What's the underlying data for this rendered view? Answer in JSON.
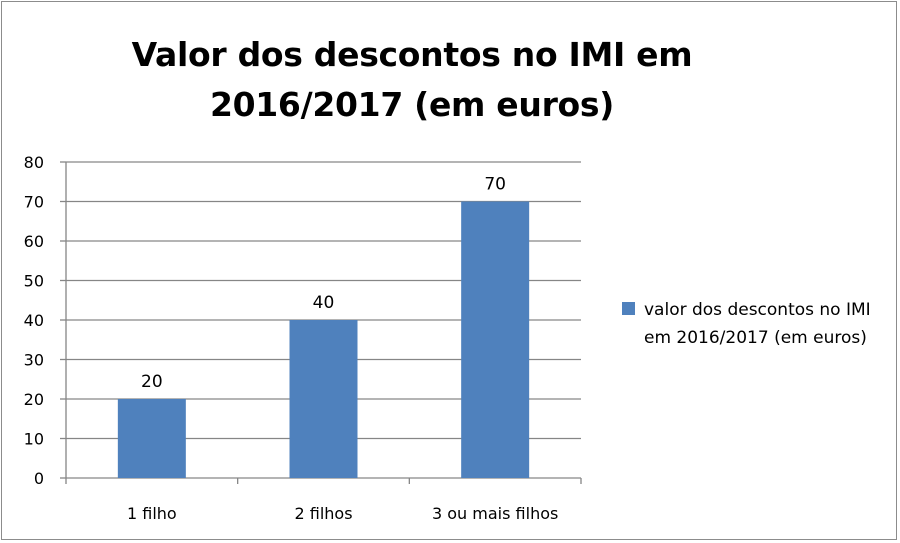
{
  "chart_data": {
    "type": "bar",
    "title": "Valor dos descontos no IMI em 2016/2017 (em euros)",
    "categories": [
      "1 filho",
      "2 filhos",
      "3 ou mais filhos"
    ],
    "series": [
      {
        "name": "valor dos descontos no IMI em 2016/2017 (em euros)",
        "values": [
          20,
          40,
          70
        ]
      }
    ],
    "data_labels": [
      "20",
      "40",
      "70"
    ],
    "y_ticks": [
      "0",
      "10",
      "20",
      "30",
      "40",
      "50",
      "60",
      "70",
      "80"
    ],
    "ylim": [
      0,
      80
    ],
    "grid": true,
    "legend_position": "right",
    "colors": {
      "bar": "#4f81bd",
      "grid": "#868686",
      "axis": "#868686"
    }
  }
}
